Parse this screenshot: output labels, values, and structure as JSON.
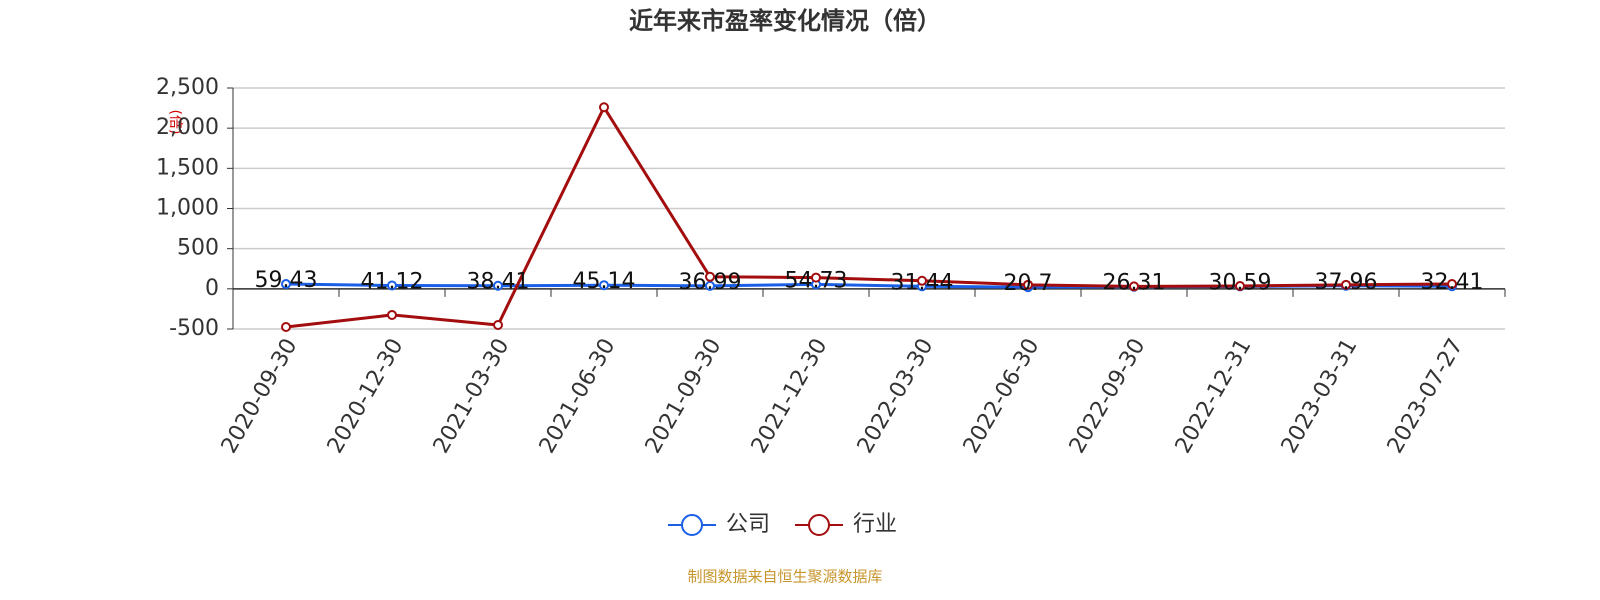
{
  "chart_data": {
    "type": "line",
    "title": "近年来市盈率变化情况（倍）",
    "y_label": "(倍)",
    "categories": [
      "2020-09-30",
      "2020-12-30",
      "2021-03-30",
      "2021-06-30",
      "2021-09-30",
      "2021-12-30",
      "2022-03-30",
      "2022-06-30",
      "2022-09-30",
      "2022-12-31",
      "2023-03-31",
      "2023-07-27"
    ],
    "series": [
      {
        "name": "公司",
        "color": "#1a5fe6",
        "values": [
          59.43,
          41.12,
          38.41,
          45.14,
          36.99,
          54.73,
          31.44,
          20.7,
          26.31,
          30.59,
          37.96,
          32.41
        ]
      },
      {
        "name": "行业",
        "color": "#a30d0d",
        "values": [
          -475,
          -325,
          -450,
          2260,
          150,
          140,
          100,
          50,
          30,
          35,
          50,
          60
        ]
      }
    ],
    "ylim": [
      -500,
      2500
    ],
    "yticks": [
      -500,
      0,
      500,
      {
        "value": 1000,
        "label": "1,000"
      },
      {
        "value": 1500,
        "label": "1,500"
      },
      {
        "value": 2000,
        "label": "2,000"
      },
      {
        "value": 2500,
        "label": "2,500"
      }
    ],
    "grid": true,
    "source": "制图数据来自恒生聚源数据库"
  }
}
